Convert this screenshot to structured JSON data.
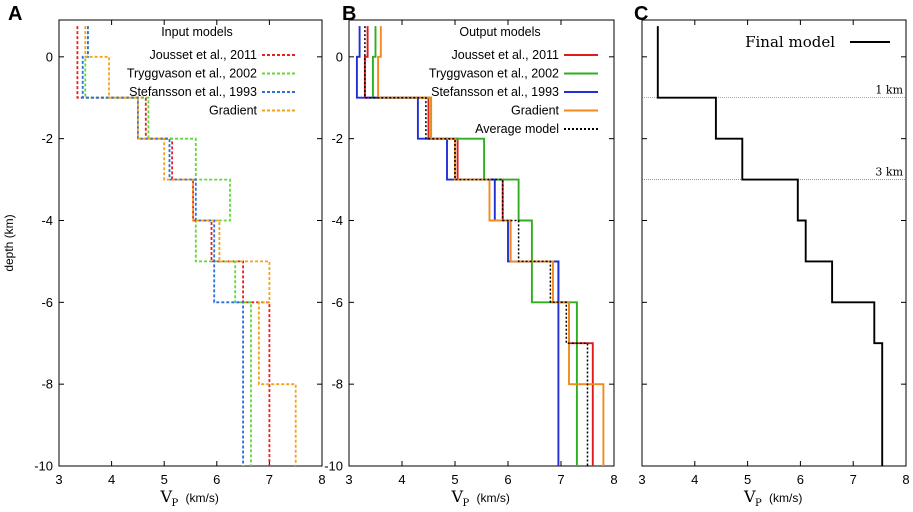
{
  "figure": {
    "y_axis_label": "depth (km)",
    "x_axis_main": "V",
    "x_axis_sub": "P",
    "x_axis_unit": "(km/s)"
  },
  "chart_data": [
    {
      "panel": "A",
      "type": "line",
      "title": "Input models",
      "xlim": [
        3,
        8
      ],
      "ylim": [
        -10,
        0.9
      ],
      "xticks": [
        "3",
        "4",
        "5",
        "6",
        "7",
        "8"
      ],
      "yticks": [
        "0",
        "-2",
        "-4",
        "-6",
        "-8",
        "-10"
      ],
      "xtick_values": [
        3,
        4,
        5,
        6,
        7,
        8
      ],
      "ytick_values": [
        0,
        -2,
        -4,
        -6,
        -8,
        -10
      ],
      "series": [
        {
          "name": "Jousset et al., 2011",
          "color": "#e8211d",
          "dash": "3,2",
          "depths": [
            0.75,
            -1,
            -2,
            -3,
            -4,
            -5,
            -6,
            -10
          ],
          "velocities": [
            3.35,
            4.65,
            5.15,
            5.55,
            5.9,
            6.5,
            7.0
          ]
        },
        {
          "name": "Tryggvason et al., 2002",
          "color": "#5fd838",
          "dash": "3,2",
          "depths": [
            0.75,
            0,
            -1,
            -2,
            -3,
            -4,
            -5,
            -6,
            -10
          ],
          "velocities": [
            3.55,
            3.5,
            4.7,
            5.6,
            6.25,
            5.6,
            6.35,
            6.65
          ]
        },
        {
          "name": "Stefansson et al., 1993",
          "color": "#2a6ee0",
          "dash": "3,2",
          "depths": [
            0.75,
            0,
            -1,
            -2,
            -3,
            -4,
            -6,
            -10
          ],
          "velocities": [
            3.55,
            3.45,
            4.5,
            5.1,
            5.6,
            5.95,
            6.5
          ]
        },
        {
          "name": "Gradient",
          "color": "#f5a21b",
          "dash": "3,2",
          "depths": [
            0.75,
            0,
            -1,
            -2,
            -3,
            -4,
            -5,
            -6,
            -8,
            -10
          ],
          "velocities": [
            3.5,
            3.95,
            4.5,
            5.0,
            5.55,
            6.05,
            7.0,
            6.8,
            7.5
          ]
        }
      ]
    },
    {
      "panel": "B",
      "type": "line",
      "title": "Output models",
      "xlim": [
        3,
        8
      ],
      "ylim": [
        -10,
        0.9
      ],
      "xticks": [
        "3",
        "4",
        "5",
        "6",
        "7",
        "8"
      ],
      "yticks": [
        "0",
        "-2",
        "-4",
        "-6",
        "-8",
        "-10"
      ],
      "xtick_values": [
        3,
        4,
        5,
        6,
        7,
        8
      ],
      "ytick_values": [
        0,
        -2,
        -4,
        -6,
        -8,
        -10
      ],
      "series": [
        {
          "name": "Jousset et al., 2011",
          "color": "#e11b1b",
          "dash": "",
          "depths": [
            0.75,
            0,
            -1,
            -2,
            -3,
            -4,
            -5,
            -6,
            -7,
            -10
          ],
          "velocities": [
            3.35,
            3.3,
            4.5,
            5.05,
            5.9,
            6.05,
            6.95,
            7.15,
            7.6
          ]
        },
        {
          "name": "Tryggvason et al., 2002",
          "color": "#2faf1f",
          "dash": "",
          "depths": [
            0.75,
            0,
            -1,
            -2,
            -3,
            -4,
            -5,
            -6,
            -8,
            -10
          ],
          "velocities": [
            3.5,
            3.45,
            4.55,
            5.55,
            6.2,
            6.45,
            6.45,
            7.3,
            7.3
          ]
        },
        {
          "name": "Stefansson et al., 1993",
          "color": "#1f2fd6",
          "dash": "",
          "depths": [
            0.75,
            0,
            -1,
            -2,
            -3,
            -4,
            -5,
            -6,
            -10
          ],
          "velocities": [
            3.2,
            3.15,
            4.3,
            4.85,
            5.75,
            6.0,
            6.95,
            6.95
          ]
        },
        {
          "name": "Gradient",
          "color": "#f28a1e",
          "dash": "",
          "depths": [
            0.75,
            0,
            -1,
            -2,
            -3,
            -4,
            -5,
            -6,
            -8,
            -10
          ],
          "velocities": [
            3.6,
            3.55,
            4.55,
            5.0,
            5.65,
            6.05,
            6.85,
            7.15,
            7.8
          ]
        },
        {
          "name": "Average model",
          "color": "#000000",
          "dash": "2,2",
          "depths": [
            0.75,
            0,
            -1,
            -2,
            -3,
            -4,
            -5,
            -6,
            -7,
            -10
          ],
          "velocities": [
            3.3,
            3.3,
            4.45,
            5.0,
            5.9,
            6.2,
            6.8,
            7.1,
            7.5
          ]
        }
      ]
    },
    {
      "panel": "C",
      "type": "line",
      "title": "Final model",
      "xlim": [
        3,
        8
      ],
      "ylim": [
        -10,
        0.9
      ],
      "xticks": [
        "3",
        "4",
        "5",
        "6",
        "7",
        "8"
      ],
      "xtick_values": [
        3,
        4,
        5,
        6,
        7,
        8
      ],
      "annotations": [
        {
          "text": "1 km",
          "depth": -1
        },
        {
          "text": "3 km",
          "depth": -3
        }
      ],
      "series": [
        {
          "name": "Final model",
          "color": "#000000",
          "dash": "",
          "depths": [
            0.75,
            -1,
            -2,
            -3,
            -4,
            -5,
            -6,
            -7,
            -10
          ],
          "velocities": [
            3.3,
            4.4,
            4.9,
            5.95,
            6.1,
            6.6,
            7.4,
            7.55
          ]
        }
      ]
    }
  ]
}
